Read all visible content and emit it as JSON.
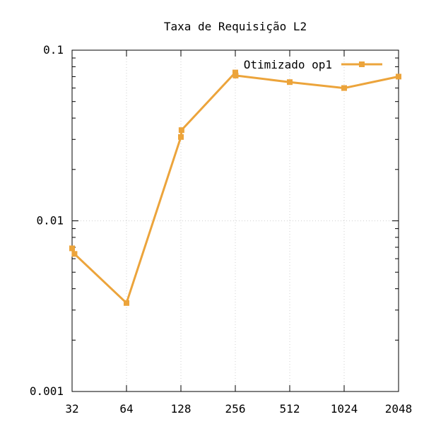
{
  "chart_data": {
    "type": "line",
    "title": "Taxa de Requisição L2",
    "xlabel": "",
    "ylabel": "",
    "x_scale": "log2",
    "y_scale": "log10",
    "ylim": [
      0.001,
      0.1
    ],
    "categories": [
      "32",
      "64",
      "128",
      "256",
      "512",
      "1024",
      "2048"
    ],
    "y_tick_labels": [
      "0.001",
      "0.01",
      "0.1"
    ],
    "grid": true,
    "legend_position": "top-right",
    "series": [
      {
        "name": "Otimizado op1",
        "color": "#eca43b",
        "marker": "square",
        "points": [
          {
            "x": 32,
            "y": 0.0069
          },
          {
            "x": 33,
            "y": 0.0064
          },
          {
            "x": 64,
            "y": 0.0033
          },
          {
            "x": 128,
            "y": 0.031
          },
          {
            "x": 129,
            "y": 0.034
          },
          {
            "x": 256,
            "y": 0.074
          },
          {
            "x": 257,
            "y": 0.071
          },
          {
            "x": 512,
            "y": 0.065
          },
          {
            "x": 1024,
            "y": 0.06
          },
          {
            "x": 2048,
            "y": 0.07
          }
        ]
      }
    ]
  }
}
